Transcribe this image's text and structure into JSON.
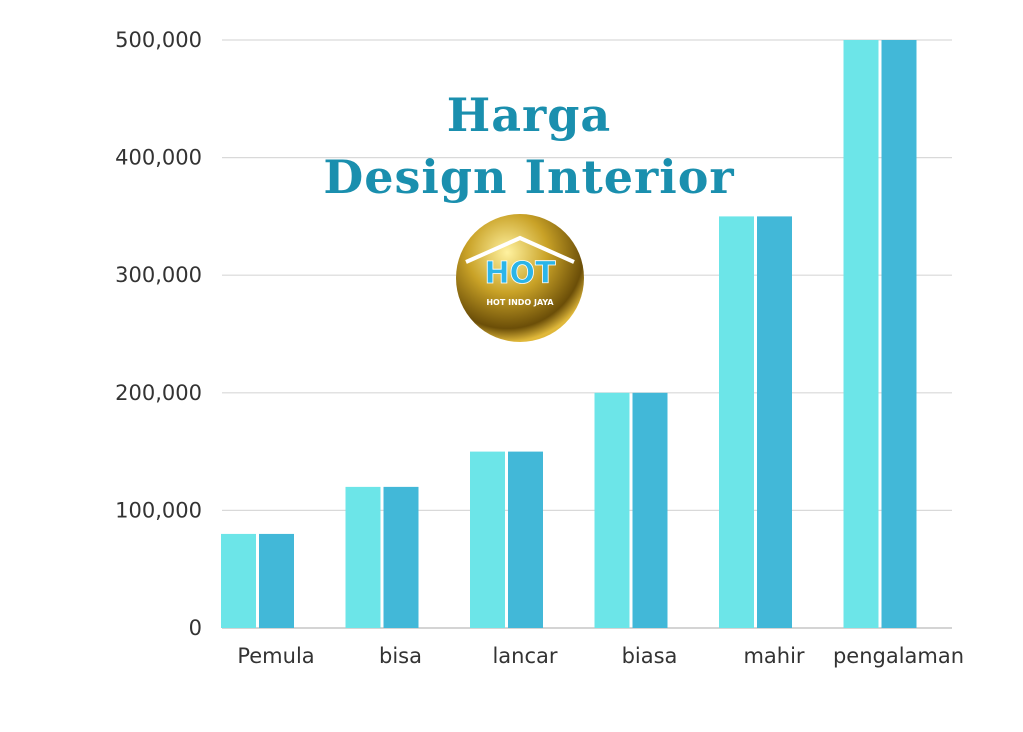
{
  "chart_data": {
    "type": "bar",
    "title": [
      "Harga",
      "Design Interior"
    ],
    "categories": [
      "Pemula",
      "bisa",
      "lancar",
      "biasa",
      "mahir",
      "pengalaman"
    ],
    "series": [
      {
        "values": [
          80000,
          120000,
          150000,
          200000,
          350000,
          500000
        ],
        "color": "#6ce5e8"
      },
      {
        "values": [
          80000,
          120000,
          150000,
          200000,
          350000,
          500000
        ],
        "color": "#42b8d8"
      }
    ],
    "yticks": [
      "0",
      "100,000",
      "200,000",
      "300,000",
      "400,000",
      "500,000"
    ],
    "ylim": [
      0,
      500000
    ],
    "grid": true,
    "xlabel": "",
    "ylabel": ""
  },
  "logo": {
    "main": "HOT",
    "sub": "HOT INDO JAYA"
  },
  "colors": {
    "title": "#1a8fae",
    "grid": "#d9d9d9"
  }
}
